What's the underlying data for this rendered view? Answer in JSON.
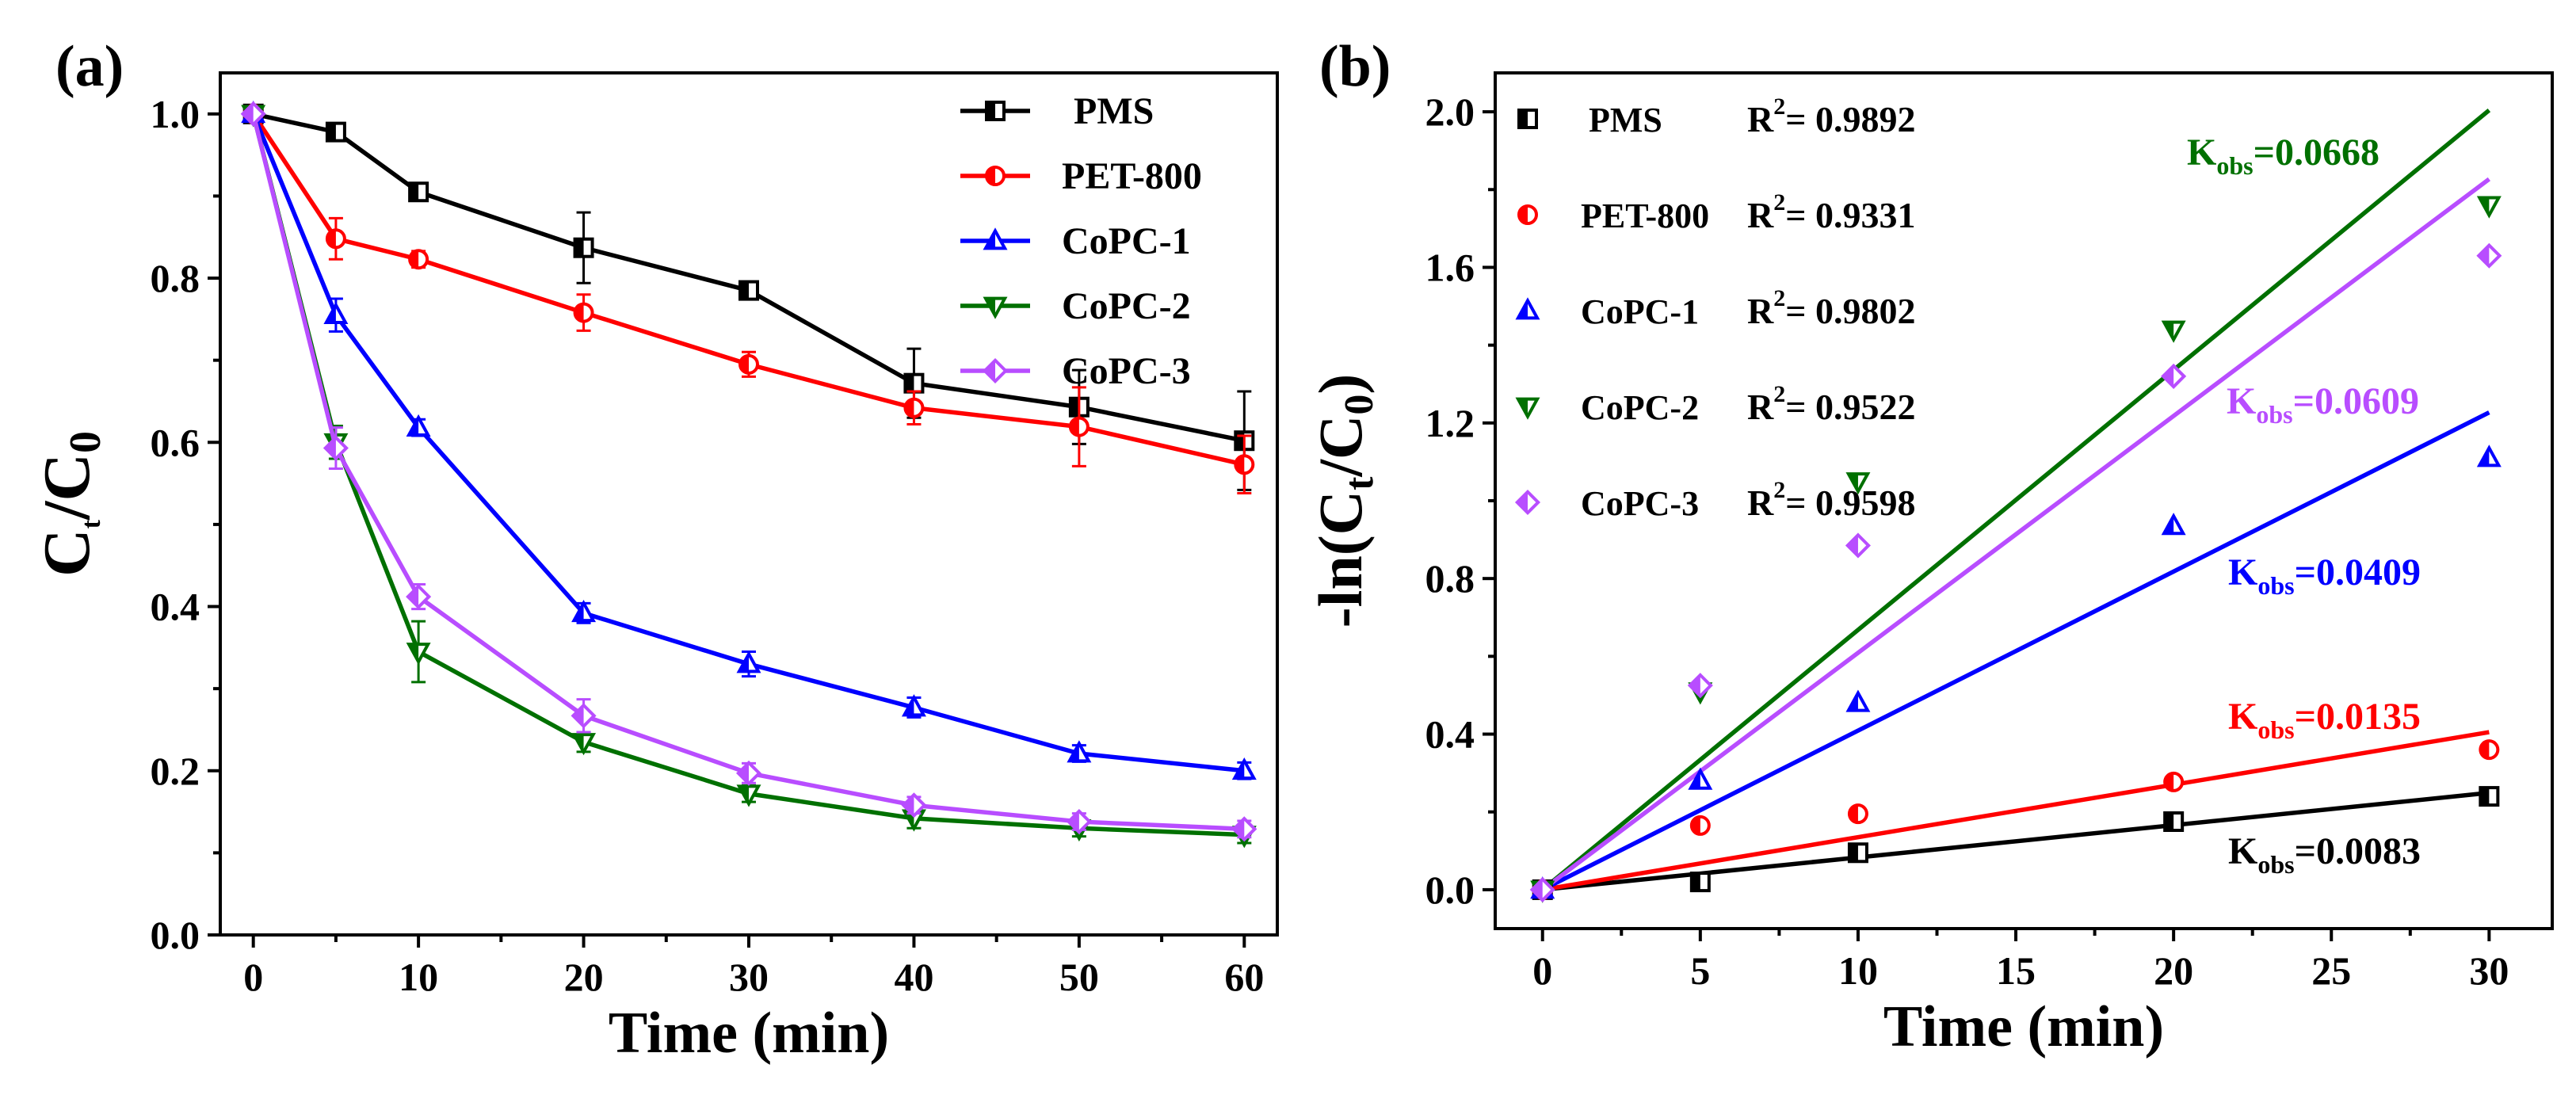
{
  "figure": {
    "panel_a_label": "(a)",
    "panel_b_label": "(b)"
  },
  "colors": {
    "PMS": "#000000",
    "PET-800": "#ff0000",
    "CoPC-1": "#0000ff",
    "CoPC-2": "#007000",
    "CoPC-3": "#b84dff"
  },
  "chart_data": [
    {
      "id": "a",
      "type": "line",
      "title": "",
      "xlabel": "Time (min)",
      "ylabel": "Ct/C0",
      "ylabel_parts": {
        "main1": "C",
        "sub1": "t",
        "slash": "/",
        "main2": "C",
        "sub2": "0"
      },
      "x": [
        0,
        5,
        10,
        20,
        30,
        40,
        50,
        60
      ],
      "xlim": [
        -2,
        62
      ],
      "ylim": [
        0,
        1.05
      ],
      "xticks": [
        0,
        10,
        20,
        30,
        40,
        50,
        60
      ],
      "yticks": [
        0.0,
        0.2,
        0.4,
        0.6,
        0.8,
        1.0
      ],
      "ytick_labels": [
        "0.0",
        "0.2",
        "0.4",
        "0.6",
        "0.8",
        "1.0"
      ],
      "legend_position": "top-right",
      "series": [
        {
          "name": "PMS",
          "marker": "square",
          "values": [
            1.0,
            0.978,
            0.905,
            0.837,
            0.785,
            0.672,
            0.643,
            0.602
          ],
          "errors": [
            0.005,
            0.007,
            0.008,
            0.043,
            0.01,
            0.042,
            0.045,
            0.06
          ]
        },
        {
          "name": "PET-800",
          "marker": "circle",
          "values": [
            1.0,
            0.848,
            0.823,
            0.758,
            0.695,
            0.642,
            0.619,
            0.573
          ],
          "errors": [
            0.005,
            0.025,
            0.01,
            0.022,
            0.015,
            0.02,
            0.048,
            0.035
          ]
        },
        {
          "name": "CoPC-1",
          "marker": "triangle-up",
          "values": [
            1.0,
            0.755,
            0.618,
            0.392,
            0.33,
            0.277,
            0.221,
            0.2
          ],
          "errors": [
            0.005,
            0.02,
            0.01,
            0.012,
            0.015,
            0.012,
            0.01,
            0.01
          ]
        },
        {
          "name": "CoPC-2",
          "marker": "triangle-down",
          "values": [
            1.0,
            0.6,
            0.345,
            0.235,
            0.172,
            0.142,
            0.13,
            0.122
          ],
          "errors": [
            0.005,
            0.02,
            0.037,
            0.012,
            0.01,
            0.012,
            0.01,
            0.01
          ]
        },
        {
          "name": "CoPC-3",
          "marker": "diamond",
          "values": [
            1.0,
            0.593,
            0.412,
            0.267,
            0.197,
            0.158,
            0.138,
            0.129
          ],
          "errors": [
            0.005,
            0.025,
            0.015,
            0.02,
            0.012,
            0.01,
            0.01,
            0.01
          ]
        }
      ]
    },
    {
      "id": "b",
      "type": "scatter",
      "title": "",
      "xlabel": "Time (min)",
      "ylabel": "-ln(Ct/C0)",
      "ylabel_parts": {
        "pre": "-ln(C",
        "sub1": "t",
        "mid": "/C",
        "sub2": "0",
        "post": ")"
      },
      "x": [
        0,
        5,
        10,
        20,
        30
      ],
      "xlim": [
        -1.5,
        32
      ],
      "ylim": [
        -0.1,
        2.1
      ],
      "xticks": [
        0,
        5,
        10,
        15,
        20,
        25,
        30
      ],
      "yticks": [
        0.0,
        0.4,
        0.8,
        1.2,
        1.6,
        2.0
      ],
      "ytick_labels": [
        "0.0",
        "0.4",
        "0.8",
        "1.2",
        "1.6",
        "2.0"
      ],
      "legend_position": "top-left",
      "kobs_prefix": "K",
      "kobs_sub": "obs",
      "r2_prefix": "R",
      "r2_sup": "2",
      "r2_eq": "= ",
      "series": [
        {
          "name": "PMS",
          "marker": "square",
          "values": [
            0.0,
            0.02,
            0.095,
            0.175,
            0.24
          ],
          "k": 0.0083,
          "kobs_text": "=0.0083",
          "r2": "0.9892"
        },
        {
          "name": "PET-800",
          "marker": "circle",
          "values": [
            0.0,
            0.165,
            0.195,
            0.277,
            0.36
          ],
          "k": 0.0135,
          "kobs_text": "=0.0135",
          "r2": "0.9331"
        },
        {
          "name": "CoPC-1",
          "marker": "triangle-up",
          "values": [
            0.0,
            0.28,
            0.48,
            0.935,
            1.11
          ],
          "k": 0.0409,
          "kobs_text": "=0.0409",
          "r2": "0.9802"
        },
        {
          "name": "CoPC-2",
          "marker": "triangle-down",
          "values": [
            0.0,
            0.51,
            1.05,
            1.44,
            1.76
          ],
          "k": 0.0668,
          "kobs_text": "=0.0668",
          "r2": "0.9522"
        },
        {
          "name": "CoPC-3",
          "marker": "diamond",
          "values": [
            0.0,
            0.525,
            0.885,
            1.32,
            1.63
          ],
          "k": 0.0609,
          "kobs_text": "=0.0609",
          "r2": "0.9598"
        }
      ]
    }
  ]
}
